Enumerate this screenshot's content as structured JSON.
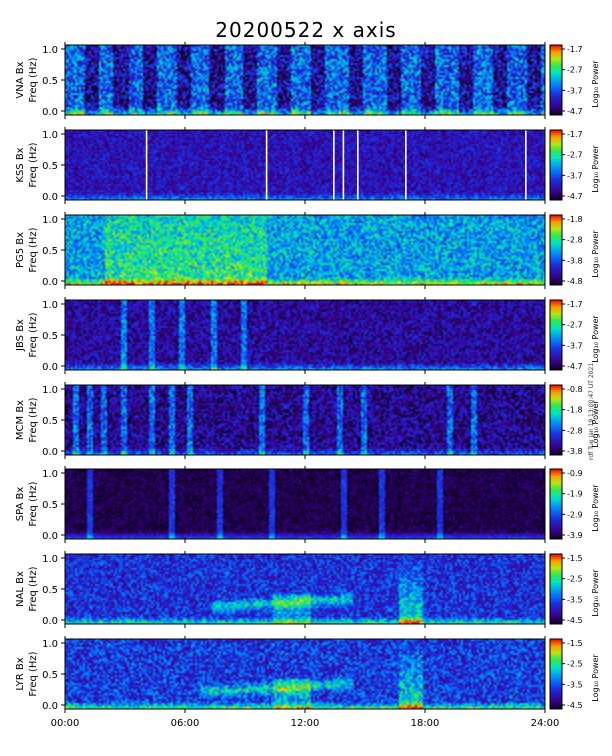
{
  "title": "20200522 x axis",
  "footnote": "rdf Tue Jan 19 13:00:47 UT 2021",
  "x_ticks": [
    "00:00",
    "06:00",
    "12:00",
    "18:00",
    "24:00"
  ],
  "colorbar_label": "Log₁₀ Power",
  "chart_data": [
    {
      "type": "heatmap",
      "station_label": "VNA Bx",
      "ylabel": "Freq (Hz)",
      "x_hours": [
        0,
        24
      ],
      "ylim": [
        0.0,
        1.0
      ],
      "y_ticks": [
        "1.0",
        "0.5",
        "0.0"
      ],
      "cbar_ticks": [
        "-1.7",
        "-2.7",
        "-3.7",
        "-4.7"
      ],
      "cbar_range": [
        -4.7,
        -1.7
      ]
    },
    {
      "type": "heatmap",
      "station_label": "KSS Bx",
      "ylabel": "Freq (Hz)",
      "x_hours": [
        0,
        24
      ],
      "ylim": [
        0.0,
        1.0
      ],
      "y_ticks": [
        "1.0",
        "0.5",
        "0.0"
      ],
      "cbar_ticks": [
        "-1.7",
        "-2.7",
        "-3.7",
        "-4.7"
      ],
      "cbar_range": [
        -4.7,
        -1.7
      ]
    },
    {
      "type": "heatmap",
      "station_label": "PG5 Bx",
      "ylabel": "Freq (Hz)",
      "x_hours": [
        0,
        24
      ],
      "ylim": [
        0.0,
        1.0
      ],
      "y_ticks": [
        "1.0",
        "0.5",
        "0.0"
      ],
      "cbar_ticks": [
        "-1.8",
        "-2.8",
        "-3.8",
        "-4.8"
      ],
      "cbar_range": [
        -4.8,
        -1.8
      ]
    },
    {
      "type": "heatmap",
      "station_label": "JBS Bx",
      "ylabel": "Freq (Hz)",
      "x_hours": [
        0,
        24
      ],
      "ylim": [
        0.0,
        1.0
      ],
      "y_ticks": [
        "1.0",
        "0.5",
        "0.0"
      ],
      "cbar_ticks": [
        "-1.7",
        "-2.7",
        "-3.7",
        "-4.7"
      ],
      "cbar_range": [
        -4.7,
        -1.7
      ]
    },
    {
      "type": "heatmap",
      "station_label": "MCM Bx",
      "ylabel": "Freq (Hz)",
      "x_hours": [
        0,
        24
      ],
      "ylim": [
        0.0,
        1.0
      ],
      "y_ticks": [
        "1.0",
        "0.5",
        "0.0"
      ],
      "cbar_ticks": [
        "-0.8",
        "-1.8",
        "-2.8",
        "-3.8"
      ],
      "cbar_range": [
        -3.8,
        -0.8
      ]
    },
    {
      "type": "heatmap",
      "station_label": "SPA Bx",
      "ylabel": "Freq (Hz)",
      "x_hours": [
        0,
        24
      ],
      "ylim": [
        0.0,
        1.0
      ],
      "y_ticks": [
        "1.0",
        "0.5",
        "0.0"
      ],
      "cbar_ticks": [
        "-0.9",
        "-1.9",
        "-2.9",
        "-3.9"
      ],
      "cbar_range": [
        -3.9,
        -0.9
      ]
    },
    {
      "type": "heatmap",
      "station_label": "NAL Bx",
      "ylabel": "Freq (Hz)",
      "x_hours": [
        0,
        24
      ],
      "ylim": [
        0.0,
        1.0
      ],
      "y_ticks": [
        "1.0",
        "0.5",
        "0.0"
      ],
      "cbar_ticks": [
        "-1.5",
        "-2.5",
        "-3.5",
        "-4.5"
      ],
      "cbar_range": [
        -4.5,
        -1.5
      ]
    },
    {
      "type": "heatmap",
      "station_label": "LYR Bx",
      "ylabel": "Freq (Hz)",
      "x_hours": [
        0,
        24
      ],
      "ylim": [
        0.0,
        1.0
      ],
      "y_ticks": [
        "1.0",
        "0.5",
        "0.0"
      ],
      "cbar_ticks": [
        "-1.5",
        "-2.5",
        "-3.5",
        "-4.5"
      ],
      "cbar_range": [
        -4.5,
        -1.5
      ]
    }
  ]
}
